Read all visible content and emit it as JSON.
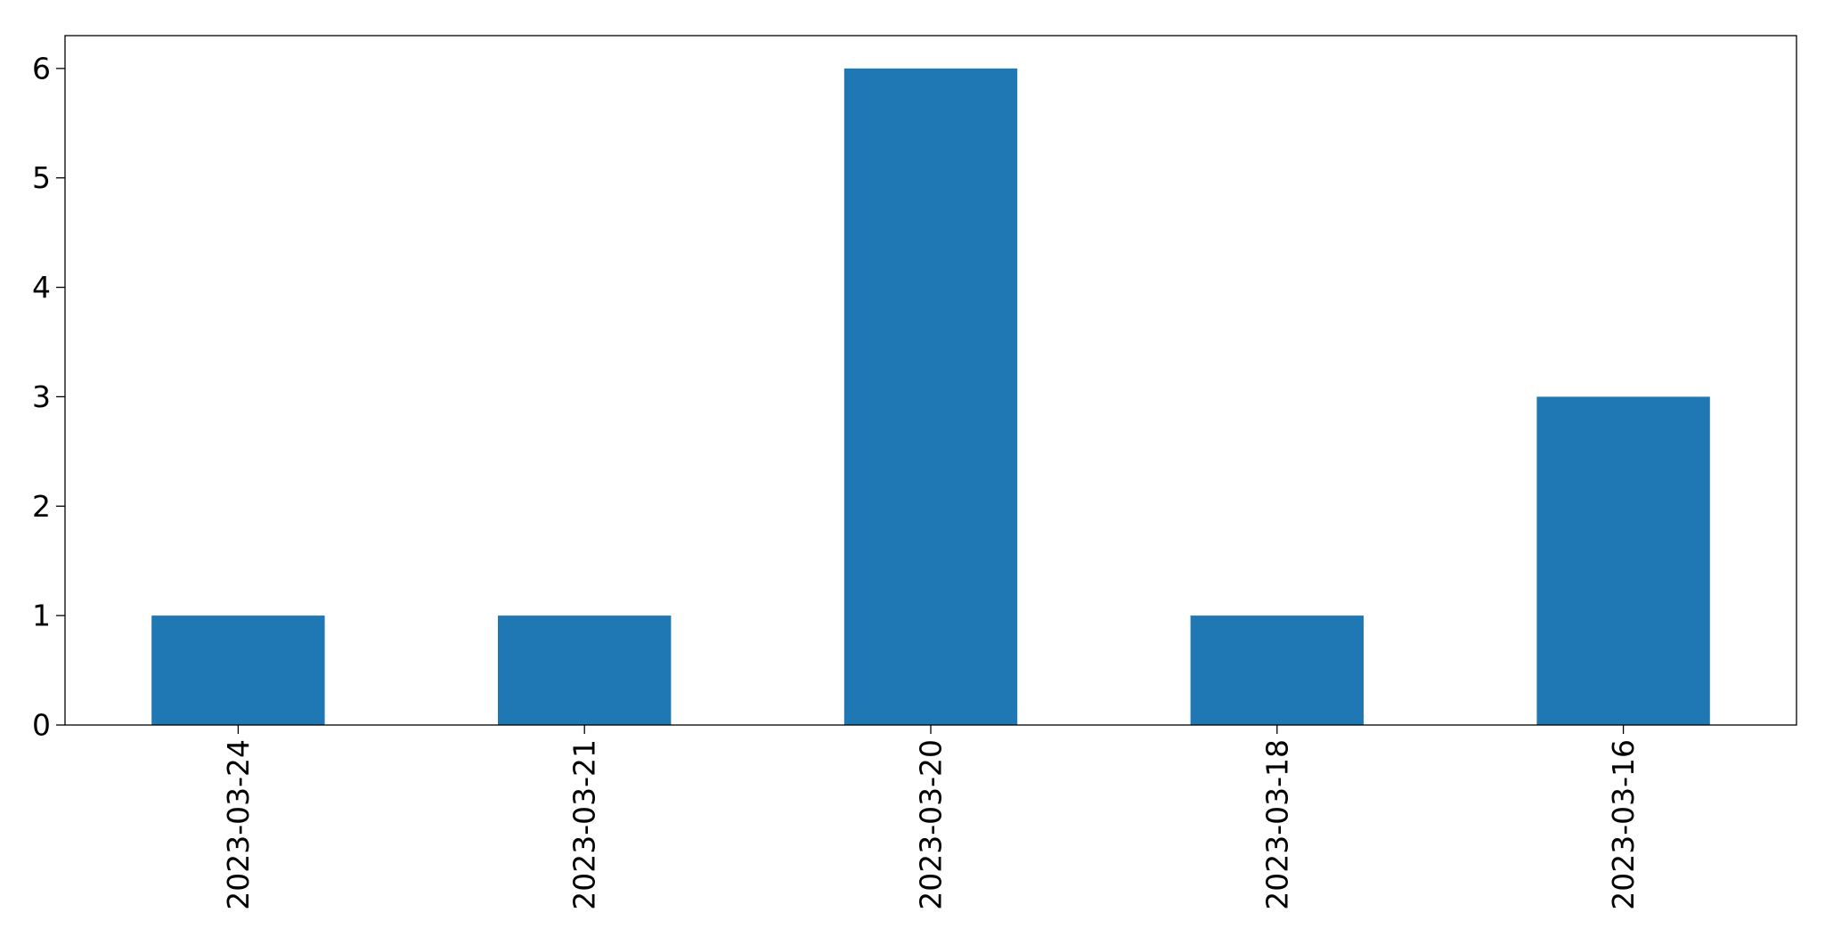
{
  "chart_data": {
    "type": "bar",
    "categories": [
      "2023-03-24",
      "2023-03-21",
      "2023-03-20",
      "2023-03-18",
      "2023-03-16"
    ],
    "values": [
      1,
      1,
      6,
      1,
      3
    ],
    "title": "",
    "xlabel": "",
    "ylabel": "",
    "ylim": [
      0,
      6.3
    ],
    "yticks": [
      0,
      1,
      2,
      3,
      4,
      5,
      6
    ],
    "grid": false,
    "legend": "none",
    "bar_color": "#1f77b4"
  }
}
